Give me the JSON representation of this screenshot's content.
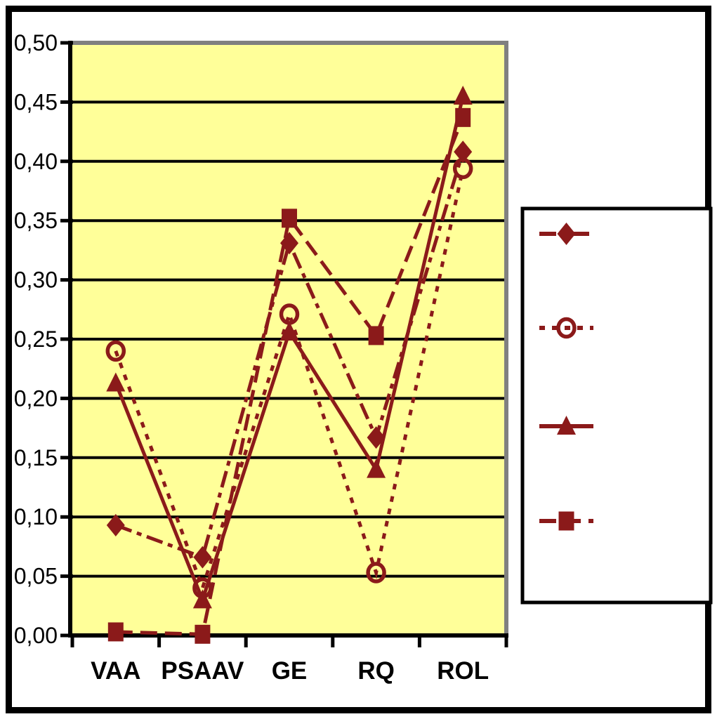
{
  "window": {
    "background_color": "#FFFFFF",
    "frame_color": "#000000"
  },
  "chart_data": {
    "type": "line",
    "title": "",
    "xlabel": "",
    "ylabel": "",
    "categories": [
      "VAA",
      "PSAAV",
      "GE",
      "RQ",
      "ROL"
    ],
    "series": [
      {
        "name": "diamond-dashdot-series",
        "marker": "diamond",
        "line_style": "dash-dot",
        "values": [
          0.093,
          0.066,
          0.331,
          0.167,
          0.408
        ]
      },
      {
        "name": "circle-dotted-series",
        "marker": "circle-open",
        "line_style": "dotted",
        "values": [
          0.24,
          0.04,
          0.271,
          0.053,
          0.394
        ]
      },
      {
        "name": "triangle-solid-series",
        "marker": "triangle",
        "line_style": "solid",
        "values": [
          0.213,
          0.03,
          0.256,
          0.14,
          0.455
        ]
      },
      {
        "name": "square-dashed-series",
        "marker": "square",
        "line_style": "long-dash",
        "values": [
          0.003,
          0.001,
          0.352,
          0.253,
          0.437
        ]
      }
    ],
    "ylim": [
      0.0,
      0.5
    ],
    "y_tick_step": 0.05,
    "y_tick_labels": [
      "0,50",
      "0,45",
      "0,40",
      "0,35",
      "0,30",
      "0,25",
      "0,20",
      "0,15",
      "0,10",
      "0,05",
      "0,00"
    ],
    "decimal_separator": ",",
    "grid": "horizontal",
    "legend_position": "right",
    "legend_has_text": false,
    "colors": {
      "series": "#8B1A1A",
      "plot_background": "#FFFF99",
      "gridline": "#000000",
      "axis": "#000000",
      "plot_border_shadow": "#808080",
      "legend_background": "#FFFFFF",
      "legend_border": "#000000"
    }
  }
}
